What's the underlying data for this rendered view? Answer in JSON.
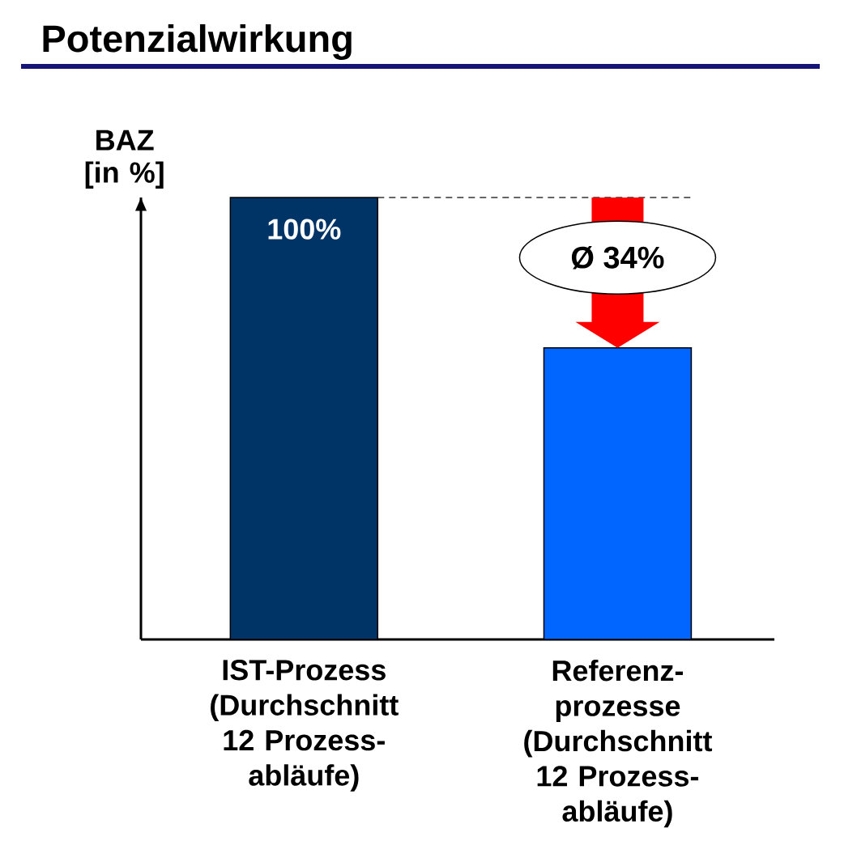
{
  "chart_data": {
    "type": "bar",
    "title": "Potenzialwirkung",
    "ylabel": "BAZ [in %]",
    "categories": [
      "IST-Prozess (Durchschnitt 12 Prozess-abläufe)",
      "Referenz-prozesse (Durchschnitt 12 Prozess-abläufe)"
    ],
    "values": [
      100,
      66
    ],
    "colors": [
      "#003366",
      "#0066ff"
    ],
    "value_labels": [
      "100%",
      null
    ],
    "ylim": [
      0,
      100
    ],
    "ref_lines": [
      {
        "axis": "y",
        "value": 100,
        "line_style": "dashed",
        "color": "#333333"
      }
    ],
    "annotations": [
      "Ø 34%"
    ],
    "tick_labels": "x"
  }
}
